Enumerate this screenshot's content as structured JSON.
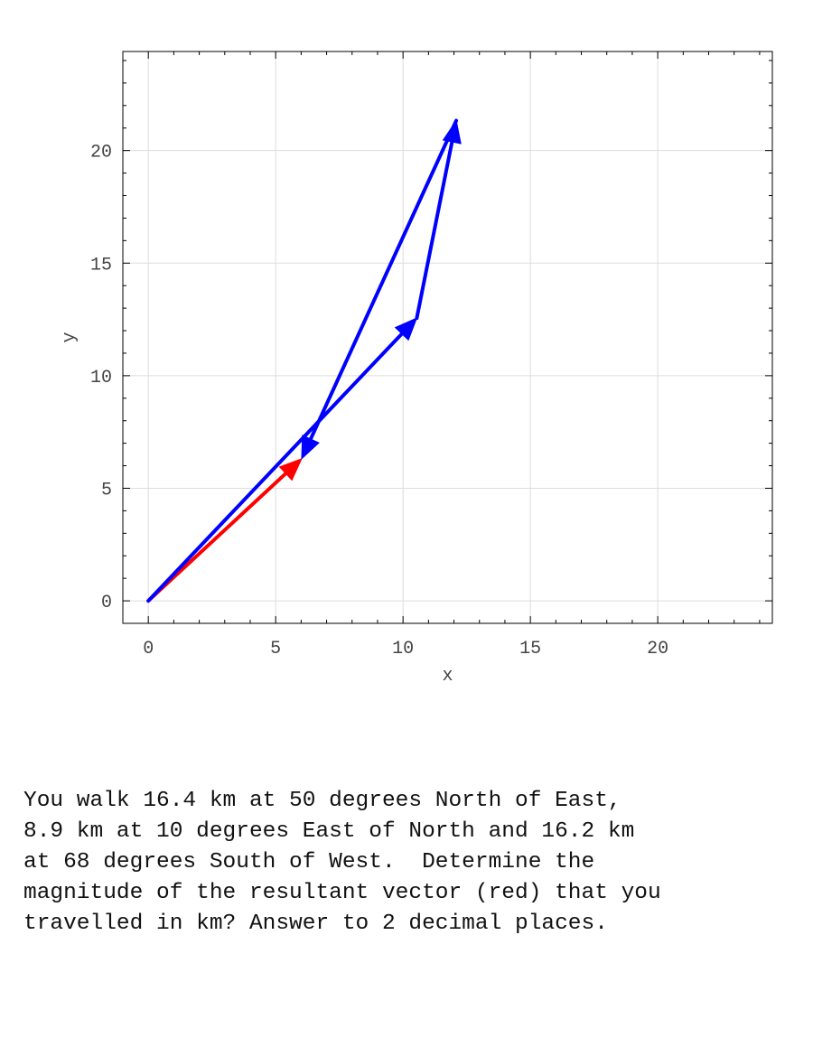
{
  "chart_data": {
    "type": "vector-plot",
    "xlabel": "x",
    "ylabel": "y",
    "xlim": [
      -1,
      24.5
    ],
    "ylim": [
      -1,
      24.4
    ],
    "xticks": [
      0,
      5,
      10,
      15,
      20
    ],
    "yticks": [
      0,
      5,
      10,
      15,
      20
    ],
    "grid": true,
    "vectors": [
      {
        "from": [
          0,
          0
        ],
        "to": [
          10.54,
          12.56
        ],
        "color": "#0000ff"
      },
      {
        "from": [
          10.54,
          12.56
        ],
        "to": [
          12.09,
          21.33
        ],
        "color": "#0000ff"
      },
      {
        "from": [
          12.09,
          21.33
        ],
        "to": [
          6.02,
          6.31
        ],
        "color": "#0000ff"
      },
      {
        "from": [
          0,
          0
        ],
        "to": [
          6.02,
          6.31
        ],
        "color": "#ff0000"
      }
    ]
  },
  "question": {
    "lines": [
      "You walk 16.4 km at 50 degrees North of East,",
      "8.9 km at 10 degrees East of North and 16.2 km",
      "at 68 degrees South of West.  Determine the",
      "magnitude of the resultant vector (red) that you",
      "travelled in km? Answer to 2 decimal places."
    ]
  }
}
